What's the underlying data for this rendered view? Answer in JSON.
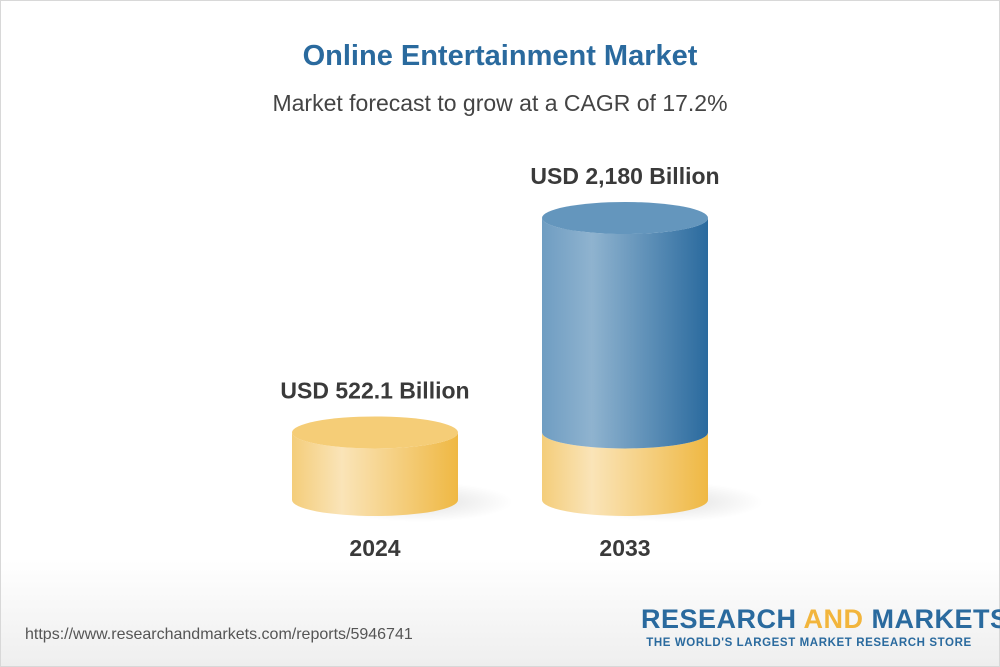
{
  "chart_data": {
    "type": "bar",
    "style": "3d-cylinder",
    "title": "Online Entertainment Market",
    "subtitle": "Market forecast to grow at a CAGR of 17.2%",
    "categories": [
      "2024",
      "2033"
    ],
    "values": [
      522.1,
      2180
    ],
    "unit": "USD Billion",
    "data_labels": [
      "USD 522.1 Billion",
      "USD 2,180 Billion"
    ],
    "colors": {
      "base": "#f2c35e",
      "growth": "#2a6a9e"
    },
    "grid": false
  },
  "footer": {
    "url": "https://www.researchandmarkets.com/reports/5946741",
    "logo_word1": "RESEARCH",
    "logo_word2": "AND",
    "logo_word3": "MARKETS",
    "logo_tagline": "THE WORLD'S LARGEST MARKET RESEARCH STORE"
  }
}
